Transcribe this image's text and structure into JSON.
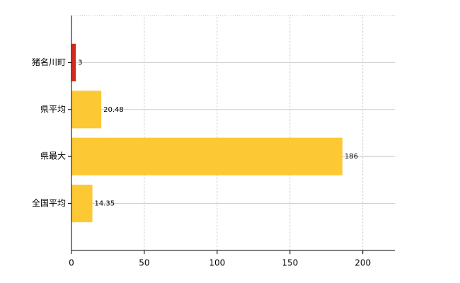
{
  "chart_data": {
    "type": "bar",
    "orientation": "horizontal",
    "categories": [
      "猪名川町",
      "県平均",
      "県最大",
      "全国平均"
    ],
    "values": [
      3,
      20.48,
      186,
      14.35
    ],
    "colors": [
      "#d42a1e",
      "#fcc934",
      "#fcc934",
      "#fcc934"
    ],
    "xlim": [
      0,
      222
    ],
    "xticks": [
      0,
      50,
      100,
      150,
      200
    ],
    "grid": true
  }
}
